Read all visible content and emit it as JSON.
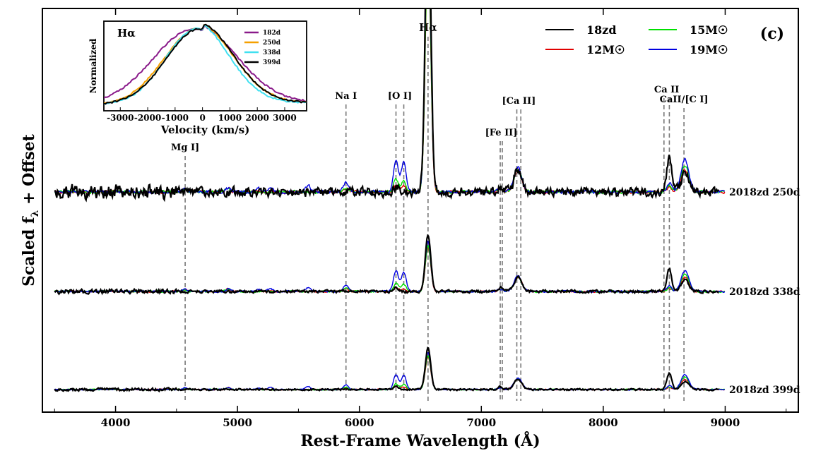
{
  "chart_data": {
    "type": "line",
    "panel_label": "(c)",
    "xlabel": "Rest-Frame Wavelength (Å)",
    "ylabel": "Scaled f_λ + Offset",
    "ylabel_parts": {
      "main": "Scaled f",
      "sub": "λ",
      "rest": " + Offset"
    },
    "xlim": [
      3400,
      9600
    ],
    "xticks": [
      4000,
      5000,
      6000,
      7000,
      8000,
      9000
    ],
    "legend": {
      "placement": "top-right",
      "entries": [
        {
          "label": "18zd",
          "color": "#000000"
        },
        {
          "label": "15M☉",
          "color": "#00e000"
        },
        {
          "label": "12M☉",
          "color": "#e00000"
        },
        {
          "label": "19M☉",
          "color": "#0000e0"
        }
      ]
    },
    "epochs": [
      {
        "label": "2018zd 250d",
        "baseline_offset": 2.0
      },
      {
        "label": "2018zd 338d",
        "baseline_offset": 1.0
      },
      {
        "label": "2018zd 399d",
        "baseline_offset": 0.0
      }
    ],
    "line_ids": [
      {
        "label": "Mg I]",
        "wavelengths": [
          4571
        ]
      },
      {
        "label": "Na I",
        "wavelengths": [
          5890
        ]
      },
      {
        "label": "[O I]",
        "wavelengths": [
          6300,
          6364
        ]
      },
      {
        "label": "Hα",
        "wavelengths": [
          6563
        ]
      },
      {
        "label": "[Fe II]",
        "wavelengths": [
          7155,
          7172
        ]
      },
      {
        "label": "[Ca II]",
        "wavelengths": [
          7291,
          7324
        ]
      },
      {
        "label": "Ca II",
        "wavelengths": [
          8498,
          8542
        ]
      },
      {
        "label": "CaII/[C I]",
        "wavelengths": [
          8662
        ]
      }
    ],
    "model_peaks": {
      "19M☉": [
        {
          "wl": 4571,
          "amp": 0.07
        },
        {
          "wl": 4925,
          "amp": 0.08
        },
        {
          "wl": 5170,
          "amp": 0.07
        },
        {
          "wl": 5270,
          "amp": 0.09
        },
        {
          "wl": 5580,
          "amp": 0.13
        },
        {
          "wl": 5890,
          "amp": 0.2
        },
        {
          "wl": 6300,
          "amp": 0.65
        },
        {
          "wl": 6364,
          "amp": 0.6
        },
        {
          "wl": 6563,
          "amp": 1.6
        },
        {
          "wl": 7155,
          "amp": 0.08
        },
        {
          "wl": 7300,
          "amp": 0.5
        },
        {
          "wl": 8542,
          "amp": 0.18
        },
        {
          "wl": 8670,
          "amp": 0.65
        }
      ],
      "15M☉": [
        {
          "wl": 4571,
          "amp": 0.05
        },
        {
          "wl": 4925,
          "amp": 0.08
        },
        {
          "wl": 5890,
          "amp": 0.1
        },
        {
          "wl": 6300,
          "amp": 0.25
        },
        {
          "wl": 6364,
          "amp": 0.22
        },
        {
          "wl": 6563,
          "amp": 1.45
        },
        {
          "wl": 7155,
          "amp": 0.08
        },
        {
          "wl": 7300,
          "amp": 0.45
        },
        {
          "wl": 8542,
          "amp": 0.12
        },
        {
          "wl": 8670,
          "amp": 0.55
        }
      ],
      "12M☉": [
        {
          "wl": 4571,
          "amp": 0.05
        },
        {
          "wl": 4925,
          "amp": 0.08
        },
        {
          "wl": 5890,
          "amp": 0.08
        },
        {
          "wl": 6300,
          "amp": 0.12
        },
        {
          "wl": 6364,
          "amp": 0.1
        },
        {
          "wl": 6563,
          "amp": 1.4
        },
        {
          "wl": 7155,
          "amp": 0.08
        },
        {
          "wl": 7300,
          "amp": 0.45
        },
        {
          "wl": 8542,
          "amp": 0.1
        },
        {
          "wl": 8670,
          "amp": 0.45
        }
      ],
      "18zd": [
        {
          "wl": 6300,
          "amp": 0.12
        },
        {
          "wl": 6563,
          "amp": 1.8
        },
        {
          "wl": 7155,
          "amp": 0.12
        },
        {
          "wl": 7300,
          "amp": 0.45
        },
        {
          "wl": 8542,
          "amp": 0.7
        },
        {
          "wl": 8670,
          "amp": 0.35
        }
      ]
    },
    "inset": {
      "title": "Hα",
      "xlabel": "Velocity (km/s)",
      "ylabel": "Normalized",
      "xlim": [
        -3600,
        3800
      ],
      "xticks": [
        -3000,
        -2000,
        -1000,
        0,
        1000,
        2000,
        3000
      ],
      "series": [
        {
          "name": "182d",
          "color": "#8a1a8a",
          "center": -300,
          "sigma": 1500
        },
        {
          "name": "250d",
          "color": "#f5a000",
          "center": -150,
          "sigma": 1250
        },
        {
          "name": "338d",
          "color": "#40e0f0",
          "center": -200,
          "sigma": 1150
        },
        {
          "name": "399d",
          "color": "#000000",
          "center": -100,
          "sigma": 1220
        }
      ]
    }
  }
}
